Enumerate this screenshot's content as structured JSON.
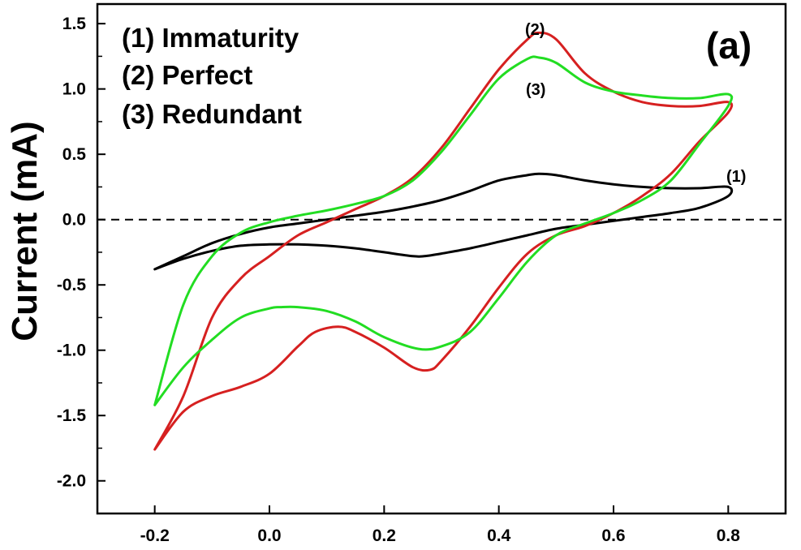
{
  "chart_data": {
    "type": "line",
    "panel_label": "(a)",
    "xlabel": "",
    "ylabel": "Current (mA)",
    "xlim": [
      -0.3,
      0.9
    ],
    "ylim": [
      -2.25,
      1.65
    ],
    "xticks": [
      "-0.2",
      "0.0",
      "0.2",
      "0.4",
      "0.6",
      "0.8"
    ],
    "yticks": [
      "1.5",
      "1.0",
      "0.5",
      "0.0",
      "-0.5",
      "-1.0",
      "-1.5",
      "-2.0"
    ],
    "legend": [
      "(1) Immaturity",
      "(2) Perfect",
      "(3) Redundant"
    ],
    "legend_position": "top-left",
    "grid": false,
    "zero_line": "dashed",
    "series": [
      {
        "label": "(1)",
        "color": "#000000",
        "x": [
          -0.2,
          -0.15,
          -0.1,
          -0.05,
          0.0,
          0.05,
          0.1,
          0.15,
          0.2,
          0.25,
          0.3,
          0.35,
          0.4,
          0.45,
          0.47,
          0.5,
          0.55,
          0.6,
          0.65,
          0.7,
          0.75,
          0.8,
          0.8,
          0.75,
          0.7,
          0.65,
          0.6,
          0.55,
          0.5,
          0.45,
          0.4,
          0.35,
          0.3,
          0.27,
          0.25,
          0.2,
          0.15,
          0.1,
          0.05,
          0.0,
          -0.05,
          -0.1,
          -0.15,
          -0.2
        ],
        "y": [
          -0.38,
          -0.28,
          -0.18,
          -0.11,
          -0.06,
          -0.03,
          0.0,
          0.03,
          0.06,
          0.1,
          0.15,
          0.22,
          0.3,
          0.34,
          0.35,
          0.34,
          0.3,
          0.27,
          0.25,
          0.24,
          0.24,
          0.25,
          0.18,
          0.09,
          0.05,
          0.02,
          -0.01,
          -0.04,
          -0.07,
          -0.12,
          -0.17,
          -0.22,
          -0.26,
          -0.28,
          -0.28,
          -0.25,
          -0.22,
          -0.2,
          -0.19,
          -0.19,
          -0.2,
          -0.24,
          -0.3,
          -0.38
        ]
      },
      {
        "label": "(2)",
        "color": "#d62020",
        "x": [
          -0.2,
          -0.15,
          -0.1,
          -0.05,
          0.0,
          0.05,
          0.1,
          0.15,
          0.2,
          0.25,
          0.3,
          0.35,
          0.4,
          0.45,
          0.47,
          0.5,
          0.55,
          0.6,
          0.65,
          0.7,
          0.75,
          0.8,
          0.8,
          0.75,
          0.7,
          0.65,
          0.6,
          0.55,
          0.5,
          0.45,
          0.4,
          0.35,
          0.3,
          0.28,
          0.25,
          0.2,
          0.15,
          0.12,
          0.08,
          0.05,
          0.0,
          -0.05,
          -0.1,
          -0.15,
          -0.2
        ],
        "y": [
          -1.76,
          -1.35,
          -0.75,
          -0.45,
          -0.28,
          -0.12,
          -0.02,
          0.08,
          0.18,
          0.32,
          0.55,
          0.85,
          1.15,
          1.38,
          1.43,
          1.38,
          1.12,
          0.98,
          0.9,
          0.87,
          0.87,
          0.9,
          0.82,
          0.6,
          0.35,
          0.18,
          0.05,
          -0.05,
          -0.12,
          -0.26,
          -0.52,
          -0.82,
          -1.08,
          -1.15,
          -1.13,
          -0.98,
          -0.86,
          -0.82,
          -0.86,
          -0.97,
          -1.18,
          -1.28,
          -1.35,
          -1.47,
          -1.76
        ]
      },
      {
        "label": "(3)",
        "color": "#22dd22",
        "x": [
          -0.2,
          -0.15,
          -0.1,
          -0.05,
          0.0,
          0.05,
          0.1,
          0.15,
          0.2,
          0.25,
          0.3,
          0.35,
          0.4,
          0.45,
          0.47,
          0.5,
          0.55,
          0.6,
          0.65,
          0.7,
          0.75,
          0.8,
          0.8,
          0.75,
          0.7,
          0.65,
          0.6,
          0.55,
          0.5,
          0.45,
          0.4,
          0.35,
          0.3,
          0.26,
          0.2,
          0.15,
          0.1,
          0.05,
          0.02,
          0.0,
          -0.05,
          -0.1,
          -0.15,
          -0.2
        ],
        "y": [
          -1.42,
          -0.65,
          -0.28,
          -0.1,
          -0.02,
          0.03,
          0.07,
          0.12,
          0.18,
          0.3,
          0.52,
          0.8,
          1.08,
          1.23,
          1.24,
          1.2,
          1.05,
          0.98,
          0.95,
          0.93,
          0.93,
          0.96,
          0.87,
          0.58,
          0.3,
          0.15,
          0.05,
          -0.03,
          -0.12,
          -0.32,
          -0.6,
          -0.86,
          -0.97,
          -0.99,
          -0.9,
          -0.78,
          -0.7,
          -0.67,
          -0.67,
          -0.68,
          -0.75,
          -0.92,
          -1.13,
          -1.42
        ]
      }
    ]
  }
}
